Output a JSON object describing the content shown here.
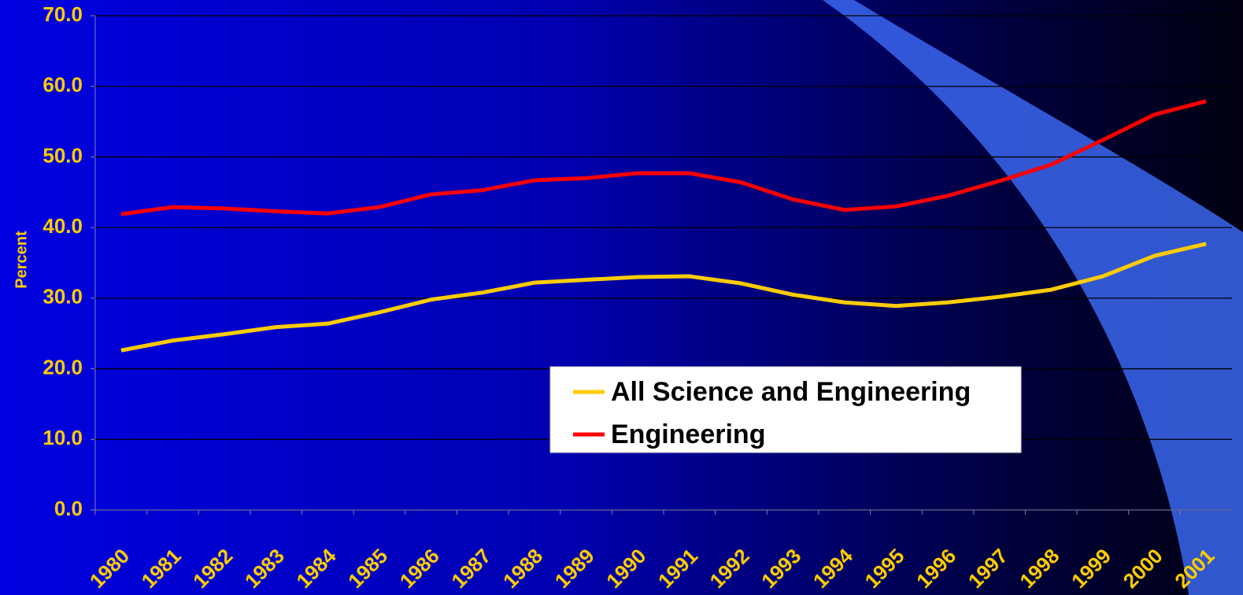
{
  "chart_data": {
    "type": "line",
    "y_label": "Percent",
    "categories": [
      "1980",
      "1981",
      "1982",
      "1983",
      "1984",
      "1985",
      "1986",
      "1987",
      "1988",
      "1989",
      "1990",
      "1991",
      "1992",
      "1993",
      "1994",
      "1995",
      "1996",
      "1997",
      "1998",
      "1999",
      "2000",
      "2001"
    ],
    "series": [
      {
        "name": "All Science and Engineering",
        "color": "#ffcc00",
        "values": [
          22.6,
          24.0,
          24.9,
          25.9,
          26.4,
          28.0,
          29.8,
          30.8,
          32.2,
          32.6,
          33.0,
          33.1,
          32.1,
          30.5,
          29.4,
          28.9,
          29.4,
          30.2,
          31.2,
          33.1,
          36.0,
          37.7
        ]
      },
      {
        "name": "Engineering",
        "color": "#ff0000",
        "values": [
          41.9,
          42.9,
          42.7,
          42.3,
          42.0,
          42.9,
          44.7,
          45.3,
          46.7,
          47.0,
          47.7,
          47.7,
          46.4,
          44.0,
          42.5,
          43.0,
          44.5,
          46.6,
          48.9,
          52.4,
          56.0,
          57.9
        ]
      }
    ],
    "ylim": [
      0,
      70
    ],
    "yticks": [
      {
        "value": 0,
        "label": "0.0"
      },
      {
        "value": 10,
        "label": "10.0"
      },
      {
        "value": 20,
        "label": "20.0"
      },
      {
        "value": 30,
        "label": "30.0"
      },
      {
        "value": 40,
        "label": "40.0"
      },
      {
        "value": 50,
        "label": "50.0"
      },
      {
        "value": 60,
        "label": "60.0"
      },
      {
        "value": 70,
        "label": "70.0"
      }
    ],
    "grid": true
  }
}
